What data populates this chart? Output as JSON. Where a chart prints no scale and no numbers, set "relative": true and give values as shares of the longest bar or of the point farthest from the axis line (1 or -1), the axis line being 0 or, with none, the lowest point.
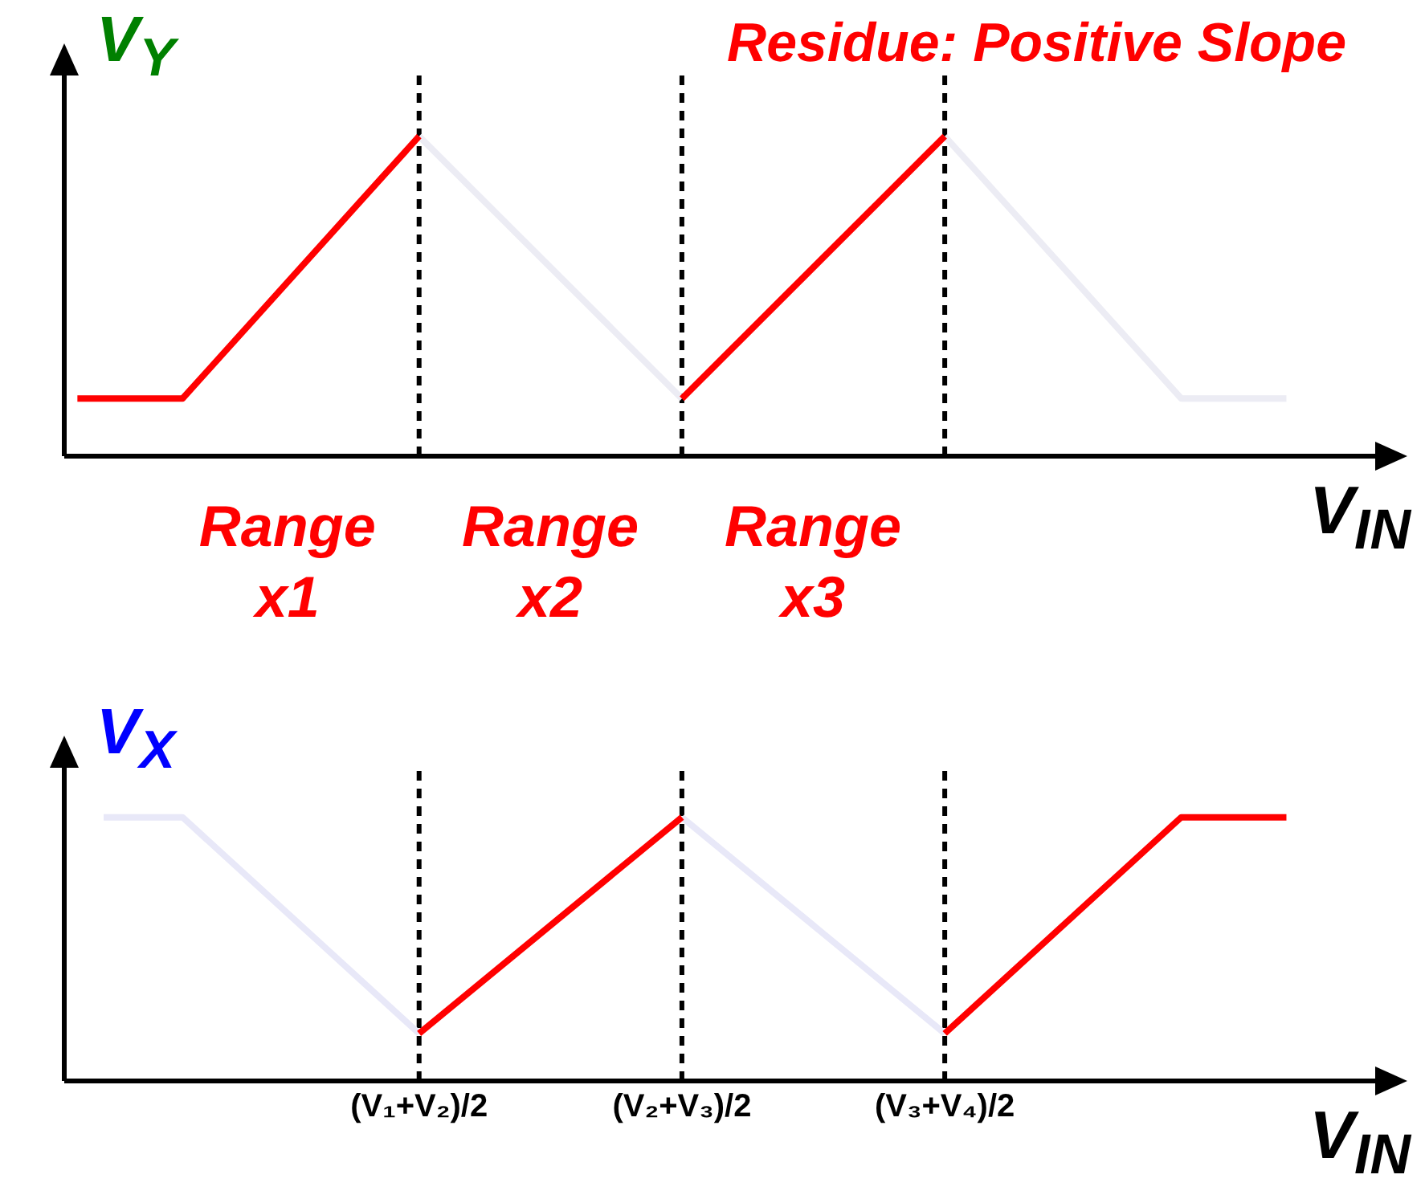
{
  "chart_data": [
    {
      "type": "line",
      "title": "Residue: Positive Slope",
      "ylabel": "V$_{Y}$",
      "xlabel": "V$_{IN}$",
      "relative": true,
      "tick_labels": false,
      "grid": false,
      "marker": "none",
      "line_style": "solid",
      "categories": [
        null,
        null,
        null,
        null,
        null,
        null,
        null,
        null,
        null,
        null,
        null,
        null,
        null,
        "(V₁+V₂)/2",
        null,
        null,
        null,
        null,
        null,
        null,
        null,
        null,
        null,
        "(V₂+V₃)/2",
        null,
        null,
        null,
        null,
        null,
        null,
        null,
        null,
        null,
        "(V₃+V₄)/2",
        null,
        null,
        null,
        null,
        null,
        null,
        null,
        null,
        null,
        null,
        null,
        null,
        null,
        null,
        null,
        null
      ],
      "series": [
        {
          "color": "#ececf4",
          "values": [
            null,
            null,
            null,
            null,
            null,
            null,
            null,
            null,
            null,
            null,
            null,
            null,
            null,
            1,
            null,
            null,
            null,
            null,
            null,
            null,
            null,
            null,
            null,
            0.18,
            null,
            null,
            null,
            null,
            null,
            null,
            null,
            null,
            null,
            null,
            null,
            null,
            null,
            null,
            null,
            null,
            null,
            null,
            null,
            null,
            null,
            null,
            null,
            null,
            null,
            null
          ]
        },
        {
          "color": "#ececf4",
          "values": [
            null,
            null,
            null,
            null,
            null,
            null,
            null,
            null,
            null,
            null,
            null,
            null,
            null,
            null,
            null,
            null,
            null,
            null,
            null,
            null,
            null,
            null,
            null,
            null,
            null,
            null,
            null,
            null,
            null,
            null,
            null,
            null,
            null,
            1,
            null,
            null,
            null,
            null,
            null,
            null,
            null,
            null,
            0.18,
            null,
            null,
            null,
            0.18,
            null,
            null,
            null
          ]
        },
        {
          "color": "#ff0000",
          "values": [
            0.18,
            null,
            null,
            null,
            0.18,
            null,
            null,
            null,
            null,
            null,
            null,
            null,
            null,
            1,
            null,
            null,
            null,
            null,
            null,
            null,
            null,
            null,
            null,
            null,
            null,
            null,
            null,
            null,
            null,
            null,
            null,
            null,
            null,
            null,
            null,
            null,
            null,
            null,
            null,
            null,
            null,
            null,
            null,
            null,
            null,
            null,
            null,
            null,
            null,
            null
          ]
        },
        {
          "color": "#ff0000",
          "values": [
            null,
            null,
            null,
            null,
            null,
            null,
            null,
            null,
            null,
            null,
            null,
            null,
            null,
            null,
            null,
            null,
            null,
            null,
            null,
            null,
            null,
            null,
            null,
            0.18,
            null,
            null,
            null,
            null,
            null,
            null,
            null,
            null,
            null,
            1,
            null,
            null,
            null,
            null,
            null,
            null,
            null,
            null,
            null,
            null,
            null,
            null,
            null,
            null,
            null,
            null
          ]
        }
      ],
      "ref_lines": [
        {
          "axis": "x",
          "value": "(V₁+V₂)/2",
          "line_style": "dashed",
          "color": "#000000"
        },
        {
          "axis": "x",
          "value": "(V₂+V₃)/2",
          "line_style": "dashed",
          "color": "#000000"
        },
        {
          "axis": "x",
          "value": "(V₃+V₄)/2",
          "line_style": "dashed",
          "color": "#000000"
        }
      ],
      "annotations": [
        "Range x1",
        "Range x2",
        "Range x3"
      ]
    },
    {
      "type": "line",
      "ylabel": "V$_{X}$",
      "xlabel": "V$_{IN}$",
      "relative": true,
      "tick_labels": "x",
      "grid": false,
      "marker": "none",
      "line_style": "solid",
      "categories": [
        null,
        null,
        null,
        null,
        null,
        null,
        null,
        null,
        null,
        null,
        null,
        null,
        null,
        "(V₁+V₂)/2",
        null,
        null,
        null,
        null,
        null,
        null,
        null,
        null,
        null,
        "(V₂+V₃)/2",
        null,
        null,
        null,
        null,
        null,
        null,
        null,
        null,
        null,
        "(V₃+V₄)/2",
        null,
        null,
        null,
        null,
        null,
        null,
        null,
        null,
        null,
        null,
        null,
        null,
        null,
        null,
        null,
        null
      ],
      "series": [
        {
          "color": "#e8e8f8",
          "values": [
            null,
            1,
            null,
            null,
            1,
            null,
            null,
            null,
            null,
            null,
            null,
            null,
            null,
            0.18,
            null,
            null,
            null,
            null,
            null,
            null,
            null,
            null,
            null,
            null,
            null,
            null,
            null,
            null,
            null,
            null,
            null,
            null,
            null,
            null,
            null,
            null,
            null,
            null,
            null,
            null,
            null,
            null,
            null,
            null,
            null,
            null,
            null,
            null,
            null,
            null
          ]
        },
        {
          "color": "#e8e8f8",
          "values": [
            null,
            null,
            null,
            null,
            null,
            null,
            null,
            null,
            null,
            null,
            null,
            null,
            null,
            null,
            null,
            null,
            null,
            null,
            null,
            null,
            null,
            null,
            null,
            1,
            null,
            null,
            null,
            null,
            null,
            null,
            null,
            null,
            null,
            0.18,
            null,
            null,
            null,
            null,
            null,
            null,
            null,
            null,
            null,
            null,
            null,
            null,
            null,
            null,
            null,
            null
          ]
        },
        {
          "color": "#ff0000",
          "values": [
            null,
            null,
            null,
            null,
            null,
            null,
            null,
            null,
            null,
            null,
            null,
            null,
            null,
            0.18,
            null,
            null,
            null,
            null,
            null,
            null,
            null,
            null,
            null,
            1,
            null,
            null,
            null,
            null,
            null,
            null,
            null,
            null,
            null,
            null,
            null,
            null,
            null,
            null,
            null,
            null,
            null,
            null,
            null,
            null,
            null,
            null,
            null,
            null,
            null,
            null
          ]
        },
        {
          "color": "#ff0000",
          "values": [
            null,
            null,
            null,
            null,
            null,
            null,
            null,
            null,
            null,
            null,
            null,
            null,
            null,
            null,
            null,
            null,
            null,
            null,
            null,
            null,
            null,
            null,
            null,
            null,
            null,
            null,
            null,
            null,
            null,
            null,
            null,
            null,
            null,
            0.18,
            null,
            null,
            null,
            null,
            null,
            null,
            null,
            null,
            1,
            null,
            null,
            null,
            1,
            null,
            null,
            null
          ]
        }
      ],
      "ref_lines": [
        {
          "axis": "x",
          "value": "(V₁+V₂)/2",
          "line_style": "dashed",
          "color": "#000000"
        },
        {
          "axis": "x",
          "value": "(V₂+V₃)/2",
          "line_style": "dashed",
          "color": "#000000"
        },
        {
          "axis": "x",
          "value": "(V₃+V₄)/2",
          "line_style": "dashed",
          "color": "#000000"
        }
      ]
    }
  ]
}
